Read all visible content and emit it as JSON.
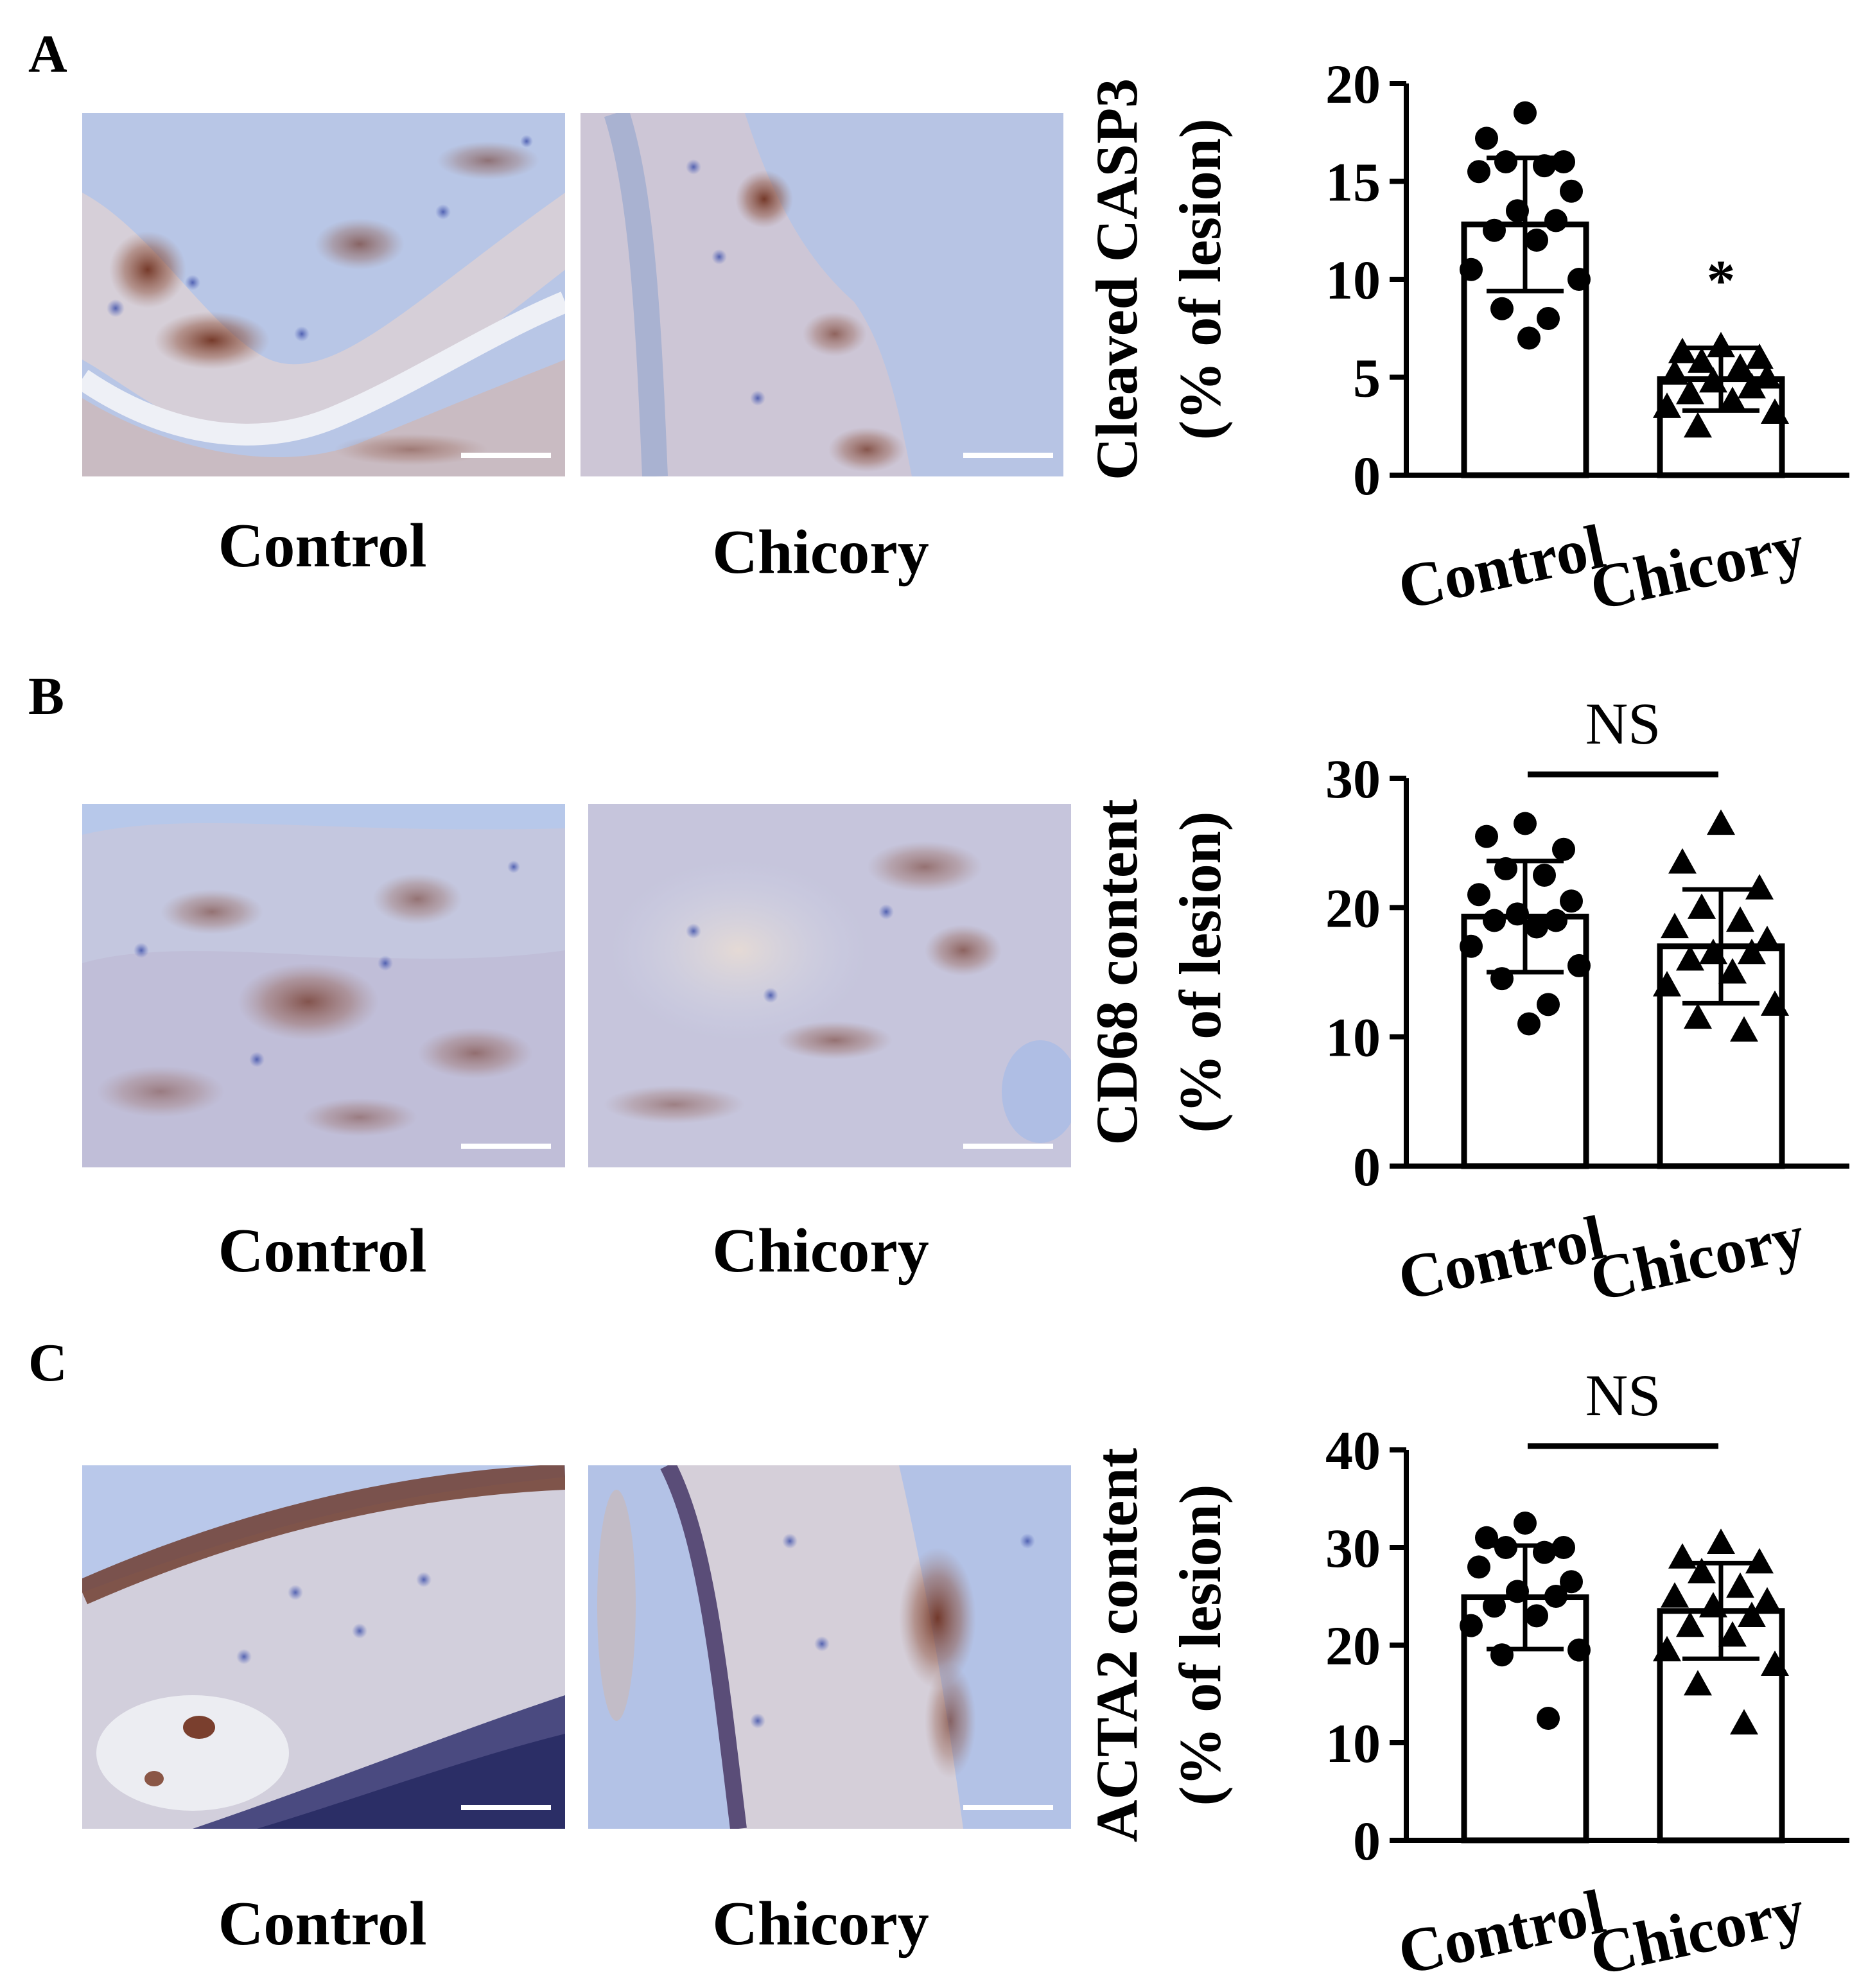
{
  "panels": [
    {
      "letter": "A",
      "images": [
        {
          "label": "Control"
        },
        {
          "label": "Chicory"
        }
      ],
      "chart_data": {
        "type": "bar",
        "categories": [
          "Control",
          "Chicory"
        ],
        "ylabel_line1": "Cleaved CASP3",
        "ylabel_line2": "(% of lesion)",
        "ylim": [
          0,
          20
        ],
        "yticks": [
          0,
          5,
          10,
          15,
          20
        ],
        "means": [
          12.8,
          4.9
        ],
        "sd": [
          3.4,
          1.6
        ],
        "points": [
          [
            18.5,
            17.2,
            16.0,
            16.0,
            15.8,
            15.5,
            14.5,
            13.5,
            13.0,
            12.5,
            12.0,
            10.5,
            10.0,
            8.5,
            8.0,
            7.0
          ],
          [
            6.6,
            6.3,
            6.0,
            5.8,
            5.5,
            5.2,
            5.0,
            4.8,
            4.5,
            4.2,
            3.8,
            3.5,
            3.2,
            2.5
          ]
        ],
        "markers": [
          "circle",
          "triangle"
        ],
        "annotation": "*",
        "grid": false,
        "legend": "none"
      }
    },
    {
      "letter": "B",
      "images": [
        {
          "label": "Control"
        },
        {
          "label": "Chicory"
        }
      ],
      "chart_data": {
        "type": "bar",
        "categories": [
          "Control",
          "Chicory"
        ],
        "ylabel_line1": "CD68 content",
        "ylabel_line2": "(% of lesion)",
        "ylim": [
          0,
          30
        ],
        "yticks": [
          0,
          10,
          20,
          30
        ],
        "means": [
          19.3,
          17.0
        ],
        "sd": [
          4.3,
          4.4
        ],
        "points": [
          [
            26.5,
            25.5,
            24.5,
            23.0,
            22.5,
            21.0,
            20.5,
            19.5,
            19.0,
            19.0,
            18.5,
            17.0,
            15.5,
            14.5,
            12.5,
            11.0
          ],
          [
            26.5,
            23.5,
            21.5,
            20.0,
            19.0,
            18.5,
            17.5,
            16.5,
            16.5,
            16.0,
            15.0,
            14.0,
            12.5,
            11.5,
            10.5
          ]
        ],
        "markers": [
          "circle",
          "triangle"
        ],
        "annotation": "NS",
        "grid": false,
        "legend": "none"
      }
    },
    {
      "letter": "C",
      "images": [
        {
          "label": "Control"
        },
        {
          "label": "Chicory"
        }
      ],
      "chart_data": {
        "type": "bar",
        "categories": [
          "Control",
          "Chicory"
        ],
        "ylabel_line1": "ACTA2 content",
        "ylabel_line2": "(% of lesion)",
        "ylim": [
          0,
          40
        ],
        "yticks": [
          0,
          10,
          20,
          30,
          40
        ],
        "means": [
          24.9,
          23.5
        ],
        "sd": [
          5.3,
          4.9
        ],
        "points": [
          [
            32.5,
            31.0,
            30.0,
            30.0,
            29.5,
            28.0,
            26.5,
            25.5,
            25.0,
            24.0,
            23.0,
            22.0,
            19.5,
            19.0,
            12.5
          ],
          [
            30.5,
            29.0,
            28.5,
            27.5,
            26.0,
            25.0,
            24.5,
            24.0,
            23.0,
            22.0,
            21.0,
            19.5,
            18.0,
            16.0,
            12.0
          ]
        ],
        "markers": [
          "circle",
          "triangle"
        ],
        "annotation": "NS",
        "grid": false,
        "legend": "none"
      }
    }
  ]
}
